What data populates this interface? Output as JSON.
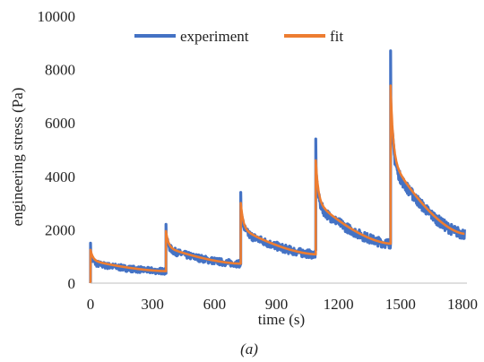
{
  "chart_data": {
    "type": "line",
    "xlabel": "time (s)",
    "ylabel": "engineering stress (Pa)",
    "caption": "(a)",
    "xlim": [
      0,
      1800
    ],
    "ylim": [
      0,
      10000
    ],
    "xticks": [
      "0",
      "300",
      "600",
      "900",
      "1200",
      "1500",
      "1800"
    ],
    "yticks": [
      "0",
      "2000",
      "4000",
      "6000",
      "8000",
      "10000"
    ],
    "legend_position": "top",
    "grid": false,
    "series": [
      {
        "name": "experiment",
        "color": "#4472C4",
        "segments": [
          {
            "t0": 0,
            "t1": 365,
            "peak": 1500,
            "start": 1050,
            "end": 450
          },
          {
            "t0": 365,
            "t1": 727,
            "peak": 2200,
            "start": 1800,
            "end": 730
          },
          {
            "t0": 727,
            "t1": 1090,
            "peak": 3400,
            "start": 2800,
            "end": 1080
          },
          {
            "t0": 1090,
            "t1": 1452,
            "peak": 5400,
            "start": 4300,
            "end": 1480
          },
          {
            "t0": 1452,
            "t1": 1810,
            "peak": 8700,
            "start": 7000,
            "end": 1850
          }
        ]
      },
      {
        "name": "fit",
        "color": "#ED7D31",
        "segments": [
          {
            "t0": 0,
            "t1": 365,
            "peak": 1250,
            "start": 1250,
            "end": 450
          },
          {
            "t0": 365,
            "t1": 727,
            "peak": 1950,
            "start": 1950,
            "end": 730
          },
          {
            "t0": 727,
            "t1": 1090,
            "peak": 3000,
            "start": 3000,
            "end": 1080
          },
          {
            "t0": 1090,
            "t1": 1452,
            "peak": 4600,
            "start": 4600,
            "end": 1480
          },
          {
            "t0": 1452,
            "t1": 1810,
            "peak": 7400,
            "start": 7400,
            "end": 1850
          }
        ]
      }
    ]
  }
}
